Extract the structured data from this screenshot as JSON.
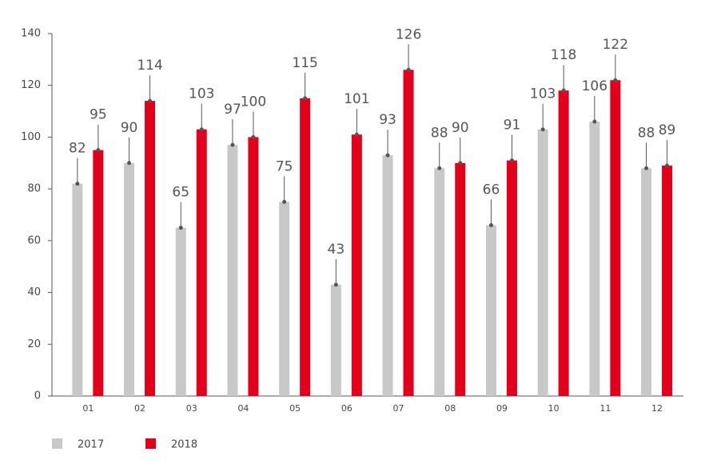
{
  "chart_data": {
    "type": "bar",
    "categories": [
      "01",
      "02",
      "03",
      "04",
      "05",
      "06",
      "07",
      "08",
      "09",
      "10",
      "11",
      "12"
    ],
    "series": [
      {
        "name": "2017",
        "color": "#c8c8c8",
        "values": [
          82,
          90,
          65,
          97,
          75,
          43,
          93,
          88,
          66,
          103,
          106,
          88
        ]
      },
      {
        "name": "2018",
        "color": "#e3001b",
        "values": [
          95,
          114,
          103,
          100,
          115,
          101,
          126,
          90,
          91,
          118,
          122,
          89
        ]
      }
    ],
    "ylim": [
      0,
      140
    ],
    "yticks": [
      0,
      20,
      40,
      60,
      80,
      100,
      120,
      140
    ],
    "grid": false,
    "legend": "bottom-left"
  }
}
